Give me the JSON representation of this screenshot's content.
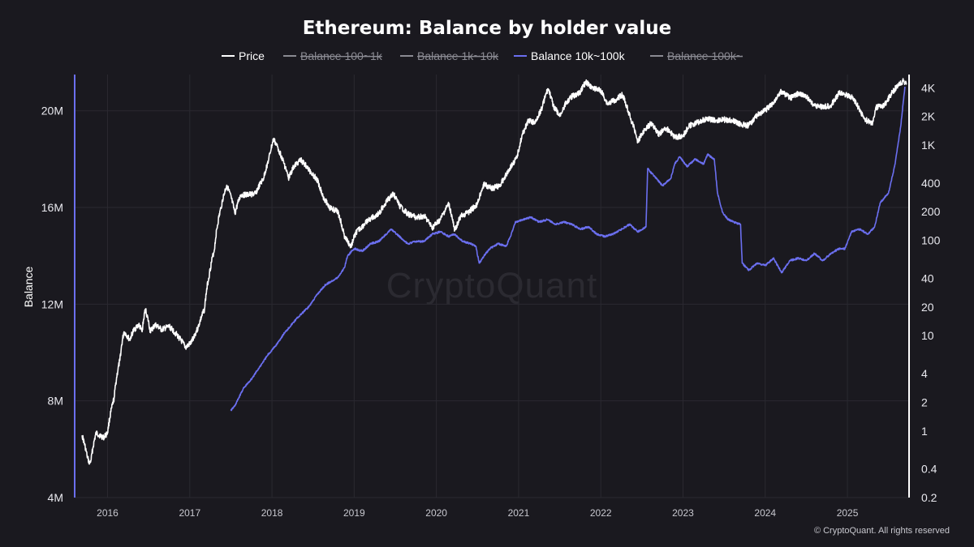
{
  "title": "Ethereum: Balance by holder value",
  "legend": [
    {
      "label": "Price",
      "active": true,
      "color": "#ffffff"
    },
    {
      "label": "Balance 100~1k",
      "active": false,
      "color": "#8a8a92"
    },
    {
      "label": "Balance 1k~10k",
      "active": false,
      "color": "#8a8a92"
    },
    {
      "label": "Balance 10k~100k",
      "active": true,
      "color": "#6b6ff0"
    },
    {
      "label": "Balance 100k~",
      "active": false,
      "color": "#8a8a92"
    }
  ],
  "watermark": "CryptoQuant",
  "copyright": "© CryptoQuant. All rights reserved",
  "colors": {
    "background": "#1a191f",
    "price": "#ffffff",
    "balance": "#6b6ff0",
    "grid": "#2a2930"
  },
  "chart_data": {
    "type": "line",
    "title": "Ethereum: Balance by holder value",
    "ylabel": "Balance",
    "y_left": {
      "min": 4000000,
      "max": 21500000,
      "ticks": [
        4000000,
        8000000,
        12000000,
        16000000,
        20000000
      ],
      "tick_labels": [
        "4M",
        "8M",
        "12M",
        "16M",
        "20M"
      ]
    },
    "y_right": {
      "scale": "log",
      "min": 0.2,
      "max": 5500,
      "ticks": [
        0.2,
        0.4,
        1,
        2,
        4,
        10,
        20,
        40,
        100,
        200,
        400,
        1000,
        2000,
        4000
      ],
      "tick_labels": [
        "0.2",
        "0.4",
        "1",
        "2",
        "4",
        "10",
        "20",
        "40",
        "100",
        "200",
        "400",
        "1K",
        "2K",
        "4K"
      ]
    },
    "x": {
      "min": 2015.6,
      "max": 2025.75,
      "ticks": [
        2016,
        2017,
        2018,
        2019,
        2020,
        2021,
        2022,
        2023,
        2024,
        2025
      ],
      "tick_labels": [
        "2016",
        "2017",
        "2018",
        "2019",
        "2020",
        "2021",
        "2022",
        "2023",
        "2024",
        "2025"
      ]
    },
    "legend_position": "top-center",
    "grid": true,
    "series": [
      {
        "name": "Price",
        "axis": "right",
        "color": "#ffffff",
        "points": [
          [
            2015.69,
            0.9
          ],
          [
            2015.75,
            0.55
          ],
          [
            2015.78,
            0.45
          ],
          [
            2015.8,
            0.5
          ],
          [
            2015.86,
            0.95
          ],
          [
            2015.95,
            0.85
          ],
          [
            2016.0,
            0.95
          ],
          [
            2016.08,
            2.2
          ],
          [
            2016.15,
            5.5
          ],
          [
            2016.2,
            11
          ],
          [
            2016.27,
            9
          ],
          [
            2016.32,
            11.5
          ],
          [
            2016.38,
            13
          ],
          [
            2016.42,
            11
          ],
          [
            2016.46,
            19
          ],
          [
            2016.52,
            11
          ],
          [
            2016.58,
            13
          ],
          [
            2016.66,
            11.5
          ],
          [
            2016.75,
            12.5
          ],
          [
            2016.85,
            10
          ],
          [
            2016.95,
            7.5
          ],
          [
            2017.02,
            8.5
          ],
          [
            2017.1,
            12
          ],
          [
            2017.18,
            19
          ],
          [
            2017.24,
            45
          ],
          [
            2017.3,
            80
          ],
          [
            2017.38,
            220
          ],
          [
            2017.45,
            380
          ],
          [
            2017.55,
            190
          ],
          [
            2017.62,
            300
          ],
          [
            2017.7,
            300
          ],
          [
            2017.8,
            310
          ],
          [
            2017.9,
            450
          ],
          [
            2017.96,
            700
          ],
          [
            2018.02,
            1150
          ],
          [
            2018.08,
            900
          ],
          [
            2018.13,
            700
          ],
          [
            2018.2,
            450
          ],
          [
            2018.27,
            600
          ],
          [
            2018.35,
            700
          ],
          [
            2018.45,
            550
          ],
          [
            2018.55,
            430
          ],
          [
            2018.62,
            290
          ],
          [
            2018.7,
            220
          ],
          [
            2018.8,
            200
          ],
          [
            2018.88,
            110
          ],
          [
            2018.96,
            85
          ],
          [
            2019.02,
            120
          ],
          [
            2019.1,
            140
          ],
          [
            2019.2,
            170
          ],
          [
            2019.3,
            190
          ],
          [
            2019.4,
            260
          ],
          [
            2019.48,
            310
          ],
          [
            2019.55,
            230
          ],
          [
            2019.65,
            190
          ],
          [
            2019.75,
            175
          ],
          [
            2019.85,
            180
          ],
          [
            2019.95,
            135
          ],
          [
            2020.05,
            165
          ],
          [
            2020.15,
            240
          ],
          [
            2020.22,
            125
          ],
          [
            2020.3,
            180
          ],
          [
            2020.4,
            200
          ],
          [
            2020.5,
            240
          ],
          [
            2020.58,
            390
          ],
          [
            2020.68,
            350
          ],
          [
            2020.78,
            380
          ],
          [
            2020.9,
            580
          ],
          [
            2020.98,
            730
          ],
          [
            2021.05,
            1300
          ],
          [
            2021.12,
            1800
          ],
          [
            2021.2,
            1700
          ],
          [
            2021.28,
            2400
          ],
          [
            2021.36,
            3900
          ],
          [
            2021.42,
            2600
          ],
          [
            2021.5,
            2000
          ],
          [
            2021.58,
            2800
          ],
          [
            2021.66,
            3300
          ],
          [
            2021.74,
            3500
          ],
          [
            2021.82,
            4600
          ],
          [
            2021.9,
            4000
          ],
          [
            2022.0,
            3700
          ],
          [
            2022.08,
            2700
          ],
          [
            2022.18,
            3000
          ],
          [
            2022.26,
            3400
          ],
          [
            2022.36,
            1900
          ],
          [
            2022.45,
            1100
          ],
          [
            2022.55,
            1500
          ],
          [
            2022.62,
            1700
          ],
          [
            2022.7,
            1300
          ],
          [
            2022.8,
            1500
          ],
          [
            2022.9,
            1200
          ],
          [
            2023.0,
            1250
          ],
          [
            2023.08,
            1600
          ],
          [
            2023.2,
            1750
          ],
          [
            2023.3,
            1900
          ],
          [
            2023.4,
            1800
          ],
          [
            2023.5,
            1850
          ],
          [
            2023.6,
            1800
          ],
          [
            2023.7,
            1650
          ],
          [
            2023.8,
            1600
          ],
          [
            2023.9,
            2050
          ],
          [
            2024.0,
            2300
          ],
          [
            2024.1,
            2800
          ],
          [
            2024.2,
            3700
          ],
          [
            2024.3,
            3100
          ],
          [
            2024.4,
            3500
          ],
          [
            2024.5,
            3200
          ],
          [
            2024.6,
            2600
          ],
          [
            2024.7,
            2500
          ],
          [
            2024.8,
            2600
          ],
          [
            2024.9,
            3500
          ],
          [
            2024.97,
            3400
          ],
          [
            2025.05,
            3200
          ],
          [
            2025.12,
            2600
          ],
          [
            2025.2,
            1900
          ],
          [
            2025.3,
            1650
          ],
          [
            2025.35,
            2500
          ],
          [
            2025.45,
            2600
          ],
          [
            2025.55,
            3600
          ],
          [
            2025.62,
            4300
          ],
          [
            2025.68,
            4700
          ],
          [
            2025.72,
            4400
          ]
        ]
      },
      {
        "name": "Balance 10k~100k",
        "axis": "left",
        "color": "#6b6ff0",
        "points": [
          [
            2017.5,
            7.6
          ],
          [
            2017.55,
            7.8
          ],
          [
            2017.65,
            8.5
          ],
          [
            2017.75,
            8.9
          ],
          [
            2017.85,
            9.4
          ],
          [
            2017.95,
            9.9
          ],
          [
            2018.05,
            10.3
          ],
          [
            2018.15,
            10.8
          ],
          [
            2018.3,
            11.4
          ],
          [
            2018.45,
            11.9
          ],
          [
            2018.55,
            12.4
          ],
          [
            2018.65,
            12.8
          ],
          [
            2018.75,
            13.0
          ],
          [
            2018.8,
            13.1
          ],
          [
            2018.88,
            13.5
          ],
          [
            2018.92,
            14.0
          ],
          [
            2019.0,
            14.3
          ],
          [
            2019.1,
            14.2
          ],
          [
            2019.2,
            14.5
          ],
          [
            2019.3,
            14.6
          ],
          [
            2019.45,
            15.1
          ],
          [
            2019.55,
            14.8
          ],
          [
            2019.65,
            14.5
          ],
          [
            2019.75,
            14.6
          ],
          [
            2019.85,
            14.6
          ],
          [
            2019.95,
            14.9
          ],
          [
            2020.05,
            15.0
          ],
          [
            2020.15,
            14.8
          ],
          [
            2020.22,
            14.9
          ],
          [
            2020.32,
            14.6
          ],
          [
            2020.42,
            14.5
          ],
          [
            2020.48,
            14.4
          ],
          [
            2020.52,
            13.7
          ],
          [
            2020.58,
            14.0
          ],
          [
            2020.65,
            14.3
          ],
          [
            2020.75,
            14.5
          ],
          [
            2020.85,
            14.4
          ],
          [
            2020.9,
            14.8
          ],
          [
            2020.96,
            15.4
          ],
          [
            2021.05,
            15.5
          ],
          [
            2021.15,
            15.6
          ],
          [
            2021.25,
            15.4
          ],
          [
            2021.35,
            15.5
          ],
          [
            2021.45,
            15.3
          ],
          [
            2021.55,
            15.4
          ],
          [
            2021.65,
            15.3
          ],
          [
            2021.75,
            15.1
          ],
          [
            2021.85,
            15.2
          ],
          [
            2021.95,
            14.9
          ],
          [
            2022.05,
            14.8
          ],
          [
            2022.15,
            14.9
          ],
          [
            2022.25,
            15.1
          ],
          [
            2022.35,
            15.3
          ],
          [
            2022.45,
            15.0
          ],
          [
            2022.55,
            15.2
          ],
          [
            2022.57,
            17.6
          ],
          [
            2022.65,
            17.3
          ],
          [
            2022.75,
            16.9
          ],
          [
            2022.85,
            17.2
          ],
          [
            2022.9,
            17.8
          ],
          [
            2022.96,
            18.1
          ],
          [
            2023.05,
            17.7
          ],
          [
            2023.15,
            18.0
          ],
          [
            2023.25,
            17.8
          ],
          [
            2023.3,
            18.2
          ],
          [
            2023.38,
            18.0
          ],
          [
            2023.42,
            16.6
          ],
          [
            2023.48,
            15.8
          ],
          [
            2023.55,
            15.5
          ],
          [
            2023.62,
            15.4
          ],
          [
            2023.7,
            15.3
          ],
          [
            2023.72,
            13.7
          ],
          [
            2023.8,
            13.4
          ],
          [
            2023.9,
            13.7
          ],
          [
            2024.0,
            13.6
          ],
          [
            2024.1,
            13.9
          ],
          [
            2024.2,
            13.3
          ],
          [
            2024.3,
            13.8
          ],
          [
            2024.4,
            13.9
          ],
          [
            2024.5,
            13.8
          ],
          [
            2024.6,
            14.1
          ],
          [
            2024.7,
            13.8
          ],
          [
            2024.8,
            14.1
          ],
          [
            2024.9,
            14.3
          ],
          [
            2024.97,
            14.3
          ],
          [
            2025.05,
            15.0
          ],
          [
            2025.15,
            15.1
          ],
          [
            2025.25,
            14.9
          ],
          [
            2025.33,
            15.2
          ],
          [
            2025.4,
            16.2
          ],
          [
            2025.5,
            16.6
          ],
          [
            2025.58,
            17.8
          ],
          [
            2025.65,
            19.4
          ],
          [
            2025.7,
            21.0
          ]
        ]
      }
    ]
  }
}
